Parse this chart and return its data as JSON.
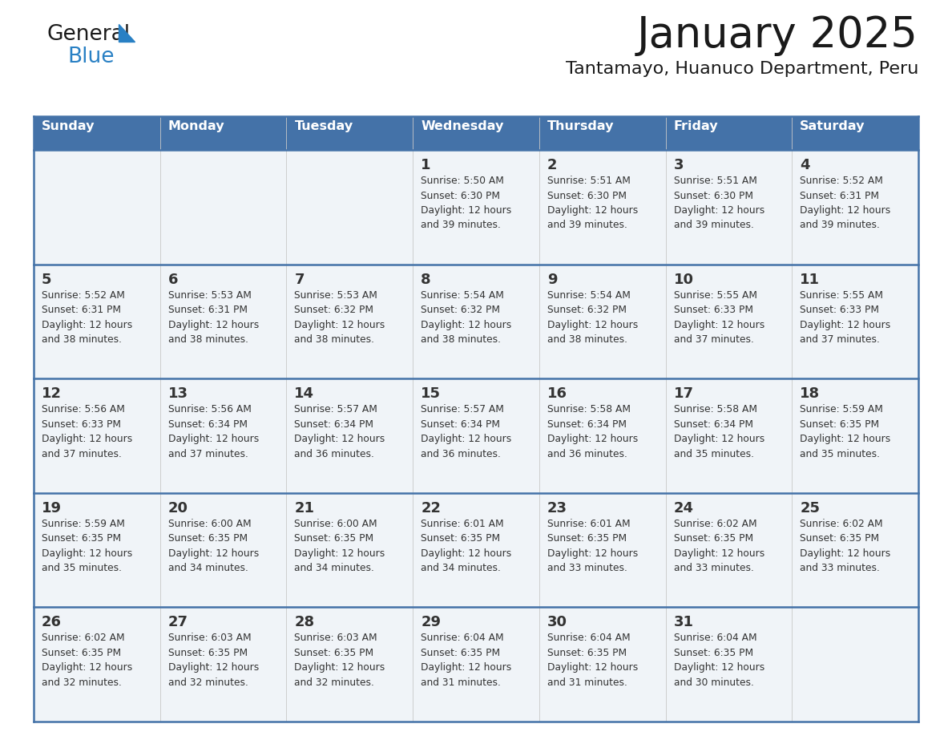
{
  "title": "January 2025",
  "subtitle": "Tantamayo, Huanuco Department, Peru",
  "days_of_week": [
    "Sunday",
    "Monday",
    "Tuesday",
    "Wednesday",
    "Thursday",
    "Friday",
    "Saturday"
  ],
  "header_bg": "#4472a8",
  "header_text": "#ffffff",
  "cell_bg": "#f0f4f8",
  "divider_color": "#4472a8",
  "text_color": "#333333",
  "title_color": "#1a1a1a",
  "logo_text_color": "#1a1a1a",
  "logo_blue_color": "#2980c4",
  "calendar_data": [
    [
      {
        "day": null,
        "info": null
      },
      {
        "day": null,
        "info": null
      },
      {
        "day": null,
        "info": null
      },
      {
        "day": 1,
        "info": "Sunrise: 5:50 AM\nSunset: 6:30 PM\nDaylight: 12 hours\nand 39 minutes."
      },
      {
        "day": 2,
        "info": "Sunrise: 5:51 AM\nSunset: 6:30 PM\nDaylight: 12 hours\nand 39 minutes."
      },
      {
        "day": 3,
        "info": "Sunrise: 5:51 AM\nSunset: 6:30 PM\nDaylight: 12 hours\nand 39 minutes."
      },
      {
        "day": 4,
        "info": "Sunrise: 5:52 AM\nSunset: 6:31 PM\nDaylight: 12 hours\nand 39 minutes."
      }
    ],
    [
      {
        "day": 5,
        "info": "Sunrise: 5:52 AM\nSunset: 6:31 PM\nDaylight: 12 hours\nand 38 minutes."
      },
      {
        "day": 6,
        "info": "Sunrise: 5:53 AM\nSunset: 6:31 PM\nDaylight: 12 hours\nand 38 minutes."
      },
      {
        "day": 7,
        "info": "Sunrise: 5:53 AM\nSunset: 6:32 PM\nDaylight: 12 hours\nand 38 minutes."
      },
      {
        "day": 8,
        "info": "Sunrise: 5:54 AM\nSunset: 6:32 PM\nDaylight: 12 hours\nand 38 minutes."
      },
      {
        "day": 9,
        "info": "Sunrise: 5:54 AM\nSunset: 6:32 PM\nDaylight: 12 hours\nand 38 minutes."
      },
      {
        "day": 10,
        "info": "Sunrise: 5:55 AM\nSunset: 6:33 PM\nDaylight: 12 hours\nand 37 minutes."
      },
      {
        "day": 11,
        "info": "Sunrise: 5:55 AM\nSunset: 6:33 PM\nDaylight: 12 hours\nand 37 minutes."
      }
    ],
    [
      {
        "day": 12,
        "info": "Sunrise: 5:56 AM\nSunset: 6:33 PM\nDaylight: 12 hours\nand 37 minutes."
      },
      {
        "day": 13,
        "info": "Sunrise: 5:56 AM\nSunset: 6:34 PM\nDaylight: 12 hours\nand 37 minutes."
      },
      {
        "day": 14,
        "info": "Sunrise: 5:57 AM\nSunset: 6:34 PM\nDaylight: 12 hours\nand 36 minutes."
      },
      {
        "day": 15,
        "info": "Sunrise: 5:57 AM\nSunset: 6:34 PM\nDaylight: 12 hours\nand 36 minutes."
      },
      {
        "day": 16,
        "info": "Sunrise: 5:58 AM\nSunset: 6:34 PM\nDaylight: 12 hours\nand 36 minutes."
      },
      {
        "day": 17,
        "info": "Sunrise: 5:58 AM\nSunset: 6:34 PM\nDaylight: 12 hours\nand 35 minutes."
      },
      {
        "day": 18,
        "info": "Sunrise: 5:59 AM\nSunset: 6:35 PM\nDaylight: 12 hours\nand 35 minutes."
      }
    ],
    [
      {
        "day": 19,
        "info": "Sunrise: 5:59 AM\nSunset: 6:35 PM\nDaylight: 12 hours\nand 35 minutes."
      },
      {
        "day": 20,
        "info": "Sunrise: 6:00 AM\nSunset: 6:35 PM\nDaylight: 12 hours\nand 34 minutes."
      },
      {
        "day": 21,
        "info": "Sunrise: 6:00 AM\nSunset: 6:35 PM\nDaylight: 12 hours\nand 34 minutes."
      },
      {
        "day": 22,
        "info": "Sunrise: 6:01 AM\nSunset: 6:35 PM\nDaylight: 12 hours\nand 34 minutes."
      },
      {
        "day": 23,
        "info": "Sunrise: 6:01 AM\nSunset: 6:35 PM\nDaylight: 12 hours\nand 33 minutes."
      },
      {
        "day": 24,
        "info": "Sunrise: 6:02 AM\nSunset: 6:35 PM\nDaylight: 12 hours\nand 33 minutes."
      },
      {
        "day": 25,
        "info": "Sunrise: 6:02 AM\nSunset: 6:35 PM\nDaylight: 12 hours\nand 33 minutes."
      }
    ],
    [
      {
        "day": 26,
        "info": "Sunrise: 6:02 AM\nSunset: 6:35 PM\nDaylight: 12 hours\nand 32 minutes."
      },
      {
        "day": 27,
        "info": "Sunrise: 6:03 AM\nSunset: 6:35 PM\nDaylight: 12 hours\nand 32 minutes."
      },
      {
        "day": 28,
        "info": "Sunrise: 6:03 AM\nSunset: 6:35 PM\nDaylight: 12 hours\nand 32 minutes."
      },
      {
        "day": 29,
        "info": "Sunrise: 6:04 AM\nSunset: 6:35 PM\nDaylight: 12 hours\nand 31 minutes."
      },
      {
        "day": 30,
        "info": "Sunrise: 6:04 AM\nSunset: 6:35 PM\nDaylight: 12 hours\nand 31 minutes."
      },
      {
        "day": 31,
        "info": "Sunrise: 6:04 AM\nSunset: 6:35 PM\nDaylight: 12 hours\nand 30 minutes."
      },
      {
        "day": null,
        "info": null
      }
    ]
  ],
  "figwidth": 11.88,
  "figheight": 9.18,
  "dpi": 100
}
